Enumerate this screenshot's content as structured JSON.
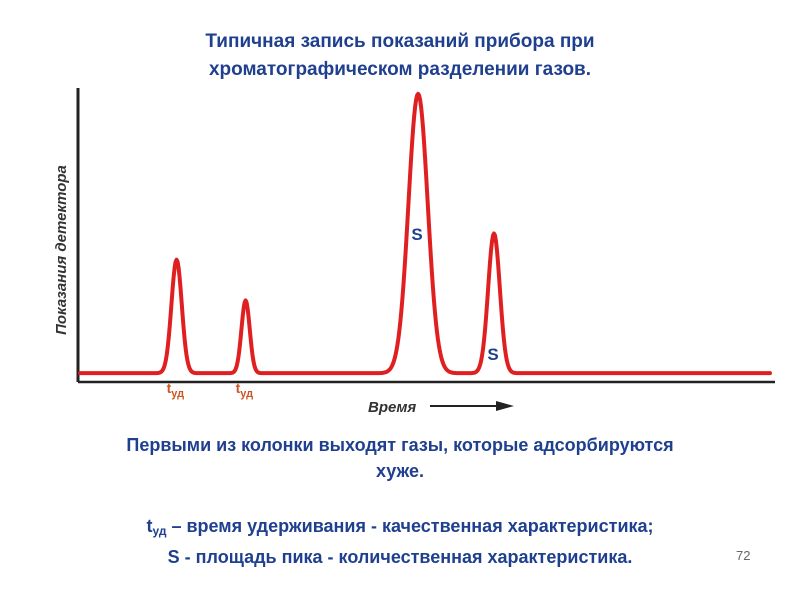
{
  "slide": {
    "title_line1": "Типичная запись показаний прибора при",
    "title_line2": "хроматографическом разделении газов.",
    "caption_line1": "Первыми из колонки выходят газы, которые адсорбируются",
    "caption_line2": "хуже.",
    "def1_t": "t",
    "def1_sub": "уд",
    "def1_rest": " – время удерживания - качественная характеристика;",
    "def2": "S - площадь пика - количественная характеристика.",
    "page_number": "72"
  },
  "colors": {
    "trace": "#e02020",
    "axis": "#222222",
    "text_blue": "#1f3f8f",
    "retention_label": "#cc5522",
    "area_label": "#1f3f8f"
  },
  "chart_data": {
    "type": "line",
    "title": "",
    "ylabel": "Показания детектора",
    "xlabel": "Время",
    "x_arrow": true,
    "peaks": [
      {
        "position": 0.14,
        "height": 0.39,
        "width": 0.0075,
        "label": "t",
        "label_sub": "уд",
        "label_kind": "retention"
      },
      {
        "position": 0.24,
        "height": 0.25,
        "width": 0.006,
        "label": "t",
        "label_sub": "уд",
        "label_kind": "retention"
      },
      {
        "position": 0.49,
        "height": 0.96,
        "width": 0.014,
        "label": "S",
        "label_kind": "area"
      },
      {
        "position": 0.6,
        "height": 0.48,
        "width": 0.0085,
        "label": "S",
        "label_kind": "area"
      }
    ],
    "baseline": 0.02,
    "grid": false
  }
}
